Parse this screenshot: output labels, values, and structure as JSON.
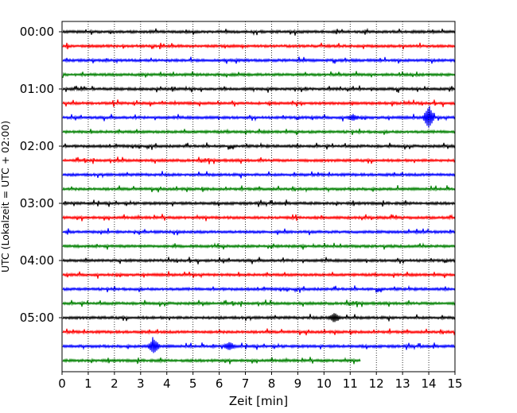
{
  "chart_data": {
    "type": "line",
    "title": "",
    "xlabel": "Zeit  [min]",
    "ylabel": "UTC (Lokalzeit = UTC + 02:00)",
    "xlim": [
      0,
      15
    ],
    "x_ticks": [
      "0",
      "1",
      "2",
      "3",
      "4",
      "5",
      "6",
      "7",
      "8",
      "9",
      "10",
      "11",
      "12",
      "13",
      "14",
      "15"
    ],
    "x_grid": "dotted",
    "y_tick_labels": [
      "00:00",
      "01:00",
      "02:00",
      "03:00",
      "04:00",
      "05:00"
    ],
    "trace_interval_minutes": 15,
    "trace_color_cycle": [
      "#000000",
      "#ff0000",
      "#0000ff",
      "#008000"
    ],
    "traces": [
      {
        "start": "00:00",
        "end_min": 15,
        "color": "#000000"
      },
      {
        "start": "00:15",
        "end_min": 15,
        "color": "#ff0000"
      },
      {
        "start": "00:30",
        "end_min": 15,
        "color": "#0000ff"
      },
      {
        "start": "00:45",
        "end_min": 15,
        "color": "#008000"
      },
      {
        "start": "01:00",
        "end_min": 15,
        "color": "#000000"
      },
      {
        "start": "01:15",
        "end_min": 15,
        "color": "#ff0000"
      },
      {
        "start": "01:30",
        "end_min": 15,
        "color": "#0000ff",
        "events": [
          {
            "t": 14.0,
            "amp": 12
          },
          {
            "t": 11.1,
            "amp": 3
          }
        ]
      },
      {
        "start": "01:45",
        "end_min": 15,
        "color": "#008000"
      },
      {
        "start": "02:00",
        "end_min": 15,
        "color": "#000000"
      },
      {
        "start": "02:15",
        "end_min": 15,
        "color": "#ff0000"
      },
      {
        "start": "02:30",
        "end_min": 15,
        "color": "#0000ff"
      },
      {
        "start": "02:45",
        "end_min": 15,
        "color": "#008000"
      },
      {
        "start": "03:00",
        "end_min": 15,
        "color": "#000000"
      },
      {
        "start": "03:15",
        "end_min": 15,
        "color": "#ff0000"
      },
      {
        "start": "03:30",
        "end_min": 15,
        "color": "#0000ff"
      },
      {
        "start": "03:45",
        "end_min": 15,
        "color": "#008000"
      },
      {
        "start": "04:00",
        "end_min": 15,
        "color": "#000000"
      },
      {
        "start": "04:15",
        "end_min": 15,
        "color": "#ff0000"
      },
      {
        "start": "04:30",
        "end_min": 15,
        "color": "#0000ff"
      },
      {
        "start": "04:45",
        "end_min": 15,
        "color": "#008000"
      },
      {
        "start": "05:00",
        "end_min": 15,
        "color": "#000000",
        "events": [
          {
            "t": 10.4,
            "amp": 5
          }
        ]
      },
      {
        "start": "05:15",
        "end_min": 15,
        "color": "#ff0000"
      },
      {
        "start": "05:30",
        "end_min": 15,
        "color": "#0000ff",
        "events": [
          {
            "t": 3.5,
            "amp": 8
          },
          {
            "t": 6.4,
            "amp": 4
          }
        ]
      },
      {
        "start": "05:45",
        "end_min": 11.4,
        "color": "#008000"
      }
    ]
  }
}
